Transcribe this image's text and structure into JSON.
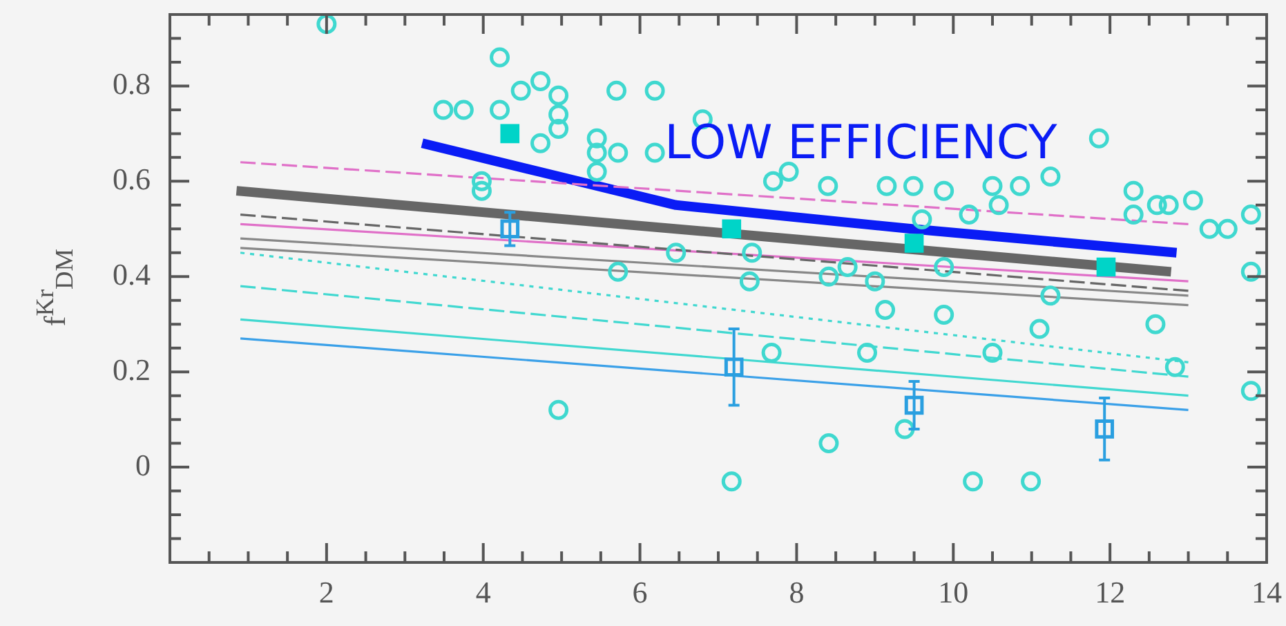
{
  "chart_data": {
    "type": "scatter",
    "ylabel": "f$^{Kr}$$_{DM}$",
    "xlim": [
      0,
      14
    ],
    "ylim": [
      -0.2,
      0.95
    ],
    "xticks": [
      2,
      4,
      6,
      8,
      10,
      12,
      14
    ],
    "yticks": [
      0,
      0.2,
      0.4,
      0.6,
      0.8
    ],
    "grid": false,
    "legend": false,
    "annotations": [
      "LOW EFFICIENCY"
    ],
    "series": [
      {
        "marker": "circle",
        "color": "#3fd8cf",
        "x": [
          2.0,
          4.21,
          3.49,
          3.75,
          4.21,
          4.48,
          4.73,
          4.96,
          4.96,
          4.96,
          4.73,
          3.98,
          3.98,
          5.45,
          5.45,
          5.45,
          5.72,
          5.7,
          6.19,
          4.96,
          5.72,
          6.19,
          6.8,
          7.7,
          7.9,
          8.4,
          9.15,
          9.49,
          9.88,
          10.5,
          10.85,
          11.24,
          11.86,
          12.3,
          12.3,
          12.6,
          12.75,
          13.06,
          13.27,
          13.5,
          13.8,
          13.8,
          13.8,
          9.6,
          10.2,
          10.58,
          6.46,
          7.43,
          7.4,
          8.41,
          8.65,
          9.0,
          9.13,
          9.88,
          9.88,
          11.1,
          11.24,
          12.58,
          12.83,
          7.68,
          8.9,
          10.5,
          9.38,
          8.41,
          7.17,
          10.25,
          10.99
        ],
        "values": [
          0.93,
          0.86,
          0.75,
          0.75,
          0.75,
          0.79,
          0.81,
          0.78,
          0.74,
          0.71,
          0.68,
          0.58,
          0.6,
          0.69,
          0.66,
          0.62,
          0.66,
          0.79,
          0.79,
          0.12,
          0.41,
          0.66,
          0.73,
          0.6,
          0.62,
          0.59,
          0.59,
          0.59,
          0.58,
          0.59,
          0.59,
          0.61,
          0.69,
          0.58,
          0.53,
          0.55,
          0.55,
          0.56,
          0.5,
          0.5,
          0.53,
          0.41,
          0.16,
          0.52,
          0.53,
          0.55,
          0.45,
          0.45,
          0.39,
          0.4,
          0.42,
          0.39,
          0.33,
          0.32,
          0.42,
          0.29,
          0.36,
          0.3,
          0.21,
          0.24,
          0.24,
          0.24,
          0.08,
          0.05,
          -0.03,
          -0.03,
          -0.03
        ]
      },
      {
        "marker": "square",
        "color": "#00d4c8",
        "x": [
          4.34,
          7.17,
          9.5,
          11.95
        ],
        "values": [
          0.7,
          0.5,
          0.47,
          0.42
        ]
      },
      {
        "marker": "square",
        "color": "#2a9fe0",
        "x": [
          4.34,
          7.2,
          9.5,
          11.93
        ],
        "values": [
          0.5,
          0.21,
          0.13,
          0.08
        ],
        "errors": [
          0.035,
          0.08,
          0.05,
          0.065
        ]
      },
      {
        "type": "line",
        "line_style": "dashed",
        "color": "#e070c8",
        "x": [
          0.9,
          13
        ],
        "values": [
          0.64,
          0.51
        ]
      },
      {
        "type": "line",
        "line_style": "dashed",
        "color": "#666666",
        "x": [
          0.9,
          13
        ],
        "values": [
          0.53,
          0.37
        ]
      },
      {
        "type": "line",
        "line_style": "solid",
        "color": "#e070c8",
        "x": [
          0.9,
          13
        ],
        "values": [
          0.51,
          0.39
        ]
      },
      {
        "type": "line",
        "line_style": "solid",
        "color": "#888888",
        "x": [
          0.9,
          13
        ],
        "values": [
          0.48,
          0.36
        ]
      },
      {
        "type": "line",
        "line_style": "solid",
        "color": "#888888",
        "x": [
          0.9,
          13
        ],
        "values": [
          0.46,
          0.34
        ]
      },
      {
        "type": "line",
        "line_style": "dotted",
        "color": "#40d8d0",
        "x": [
          0.9,
          13
        ],
        "values": [
          0.45,
          0.22
        ]
      },
      {
        "type": "line",
        "line_style": "dashed",
        "color": "#40d8d0",
        "x": [
          0.9,
          13
        ],
        "values": [
          0.38,
          0.19
        ]
      },
      {
        "type": "line",
        "line_style": "solid",
        "color": "#40d8d0",
        "x": [
          0.9,
          13
        ],
        "values": [
          0.31,
          0.15
        ]
      },
      {
        "type": "line",
        "line_style": "solid",
        "color": "#3aa0e8",
        "x": [
          0.9,
          13
        ],
        "values": [
          0.27,
          0.12
        ]
      },
      {
        "type": "line",
        "line_style": "solid",
        "color": "#666666",
        "x": [
          0.85,
          12.78
        ],
        "values": [
          0.58,
          0.41
        ]
      },
      {
        "type": "line",
        "line_style": "solid",
        "color": "#0a1cf5",
        "x": [
          3.22,
          6.46,
          9.47,
          12.85
        ],
        "values": [
          0.68,
          0.55,
          0.5,
          0.45
        ]
      }
    ]
  }
}
